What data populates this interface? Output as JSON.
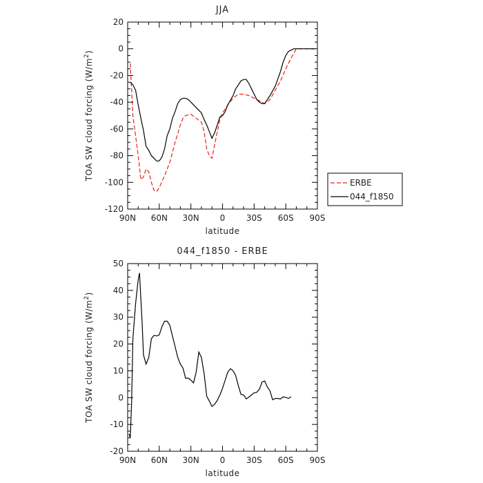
{
  "chart_data": [
    {
      "type": "line",
      "title": "JJA",
      "xlabel": "latitude",
      "ylabel": "TOA SW cloud forcing (W/m",
      "ylabel_sup": "2",
      "ylabel_end": ")",
      "xlim": [
        90,
        -90
      ],
      "ylim": [
        -120,
        20
      ],
      "x_ticks": [
        90,
        60,
        30,
        0,
        -30,
        -60,
        -90
      ],
      "x_tick_labels": [
        "90N",
        "60N",
        "30N",
        "0",
        "30S",
        "60S",
        "90S"
      ],
      "y_ticks": [
        -120,
        -100,
        -80,
        -60,
        -40,
        -20,
        0,
        20
      ],
      "y_tick_labels": [
        "-120",
        "-100",
        "-80",
        "-60",
        "-40",
        "-20",
        "0",
        "20"
      ],
      "legend": "right",
      "series": [
        {
          "name": "ERBE",
          "color": "#e8201c",
          "dash": "dashed",
          "points": [
            [
              87.5,
              -11
            ],
            [
              85,
              -50
            ],
            [
              80,
              -80
            ],
            [
              77.5,
              -98
            ],
            [
              75,
              -96
            ],
            [
              72.5,
              -90
            ],
            [
              70,
              -92
            ],
            [
              67.5,
              -100
            ],
            [
              65,
              -106
            ],
            [
              62.5,
              -107
            ],
            [
              60,
              -104
            ],
            [
              55,
              -95
            ],
            [
              50,
              -85
            ],
            [
              45,
              -70
            ],
            [
              40,
              -57
            ],
            [
              37.5,
              -52
            ],
            [
              35,
              -50
            ],
            [
              30,
              -49
            ],
            [
              25,
              -52
            ],
            [
              20,
              -55
            ],
            [
              17.5,
              -62
            ],
            [
              15,
              -75
            ],
            [
              12.5,
              -80
            ],
            [
              10,
              -82
            ],
            [
              7.5,
              -72
            ],
            [
              5,
              -62
            ],
            [
              2.5,
              -53
            ],
            [
              0,
              -48
            ],
            [
              -2.5,
              -45
            ],
            [
              -5,
              -42
            ],
            [
              -10,
              -37
            ],
            [
              -15,
              -34
            ],
            [
              -20,
              -34
            ],
            [
              -25,
              -35
            ],
            [
              -30,
              -37
            ],
            [
              -35,
              -39
            ],
            [
              -40,
              -41
            ],
            [
              -45,
              -38
            ],
            [
              -50,
              -31
            ],
            [
              -55,
              -24
            ],
            [
              -60,
              -15
            ],
            [
              -65,
              -7
            ],
            [
              -70,
              0
            ],
            [
              -75,
              0
            ],
            [
              -80,
              0
            ],
            [
              -85,
              0
            ],
            [
              -87.5,
              0
            ]
          ]
        },
        {
          "name": "044_f1850",
          "color": "#000000",
          "dash": "solid",
          "points": [
            [
              87.5,
              -25
            ],
            [
              85,
              -27
            ],
            [
              82.5,
              -31
            ],
            [
              80,
              -42
            ],
            [
              77.5,
              -52
            ],
            [
              75,
              -61
            ],
            [
              72.5,
              -73
            ],
            [
              70,
              -76
            ],
            [
              67.5,
              -80
            ],
            [
              65,
              -82
            ],
            [
              62.5,
              -84
            ],
            [
              60,
              -84
            ],
            [
              57.5,
              -81
            ],
            [
              55,
              -75
            ],
            [
              52.5,
              -65
            ],
            [
              50,
              -60
            ],
            [
              47.5,
              -52
            ],
            [
              45,
              -47
            ],
            [
              42.5,
              -41
            ],
            [
              40,
              -38
            ],
            [
              37.5,
              -37
            ],
            [
              35,
              -37
            ],
            [
              32.5,
              -38
            ],
            [
              30,
              -40
            ],
            [
              25,
              -44
            ],
            [
              20,
              -48
            ],
            [
              17.5,
              -53
            ],
            [
              15,
              -57
            ],
            [
              12.5,
              -62
            ],
            [
              10,
              -67
            ],
            [
              7.5,
              -63
            ],
            [
              5,
              -57
            ],
            [
              2.5,
              -51
            ],
            [
              0,
              -50
            ],
            [
              -2.5,
              -47
            ],
            [
              -5,
              -42
            ],
            [
              -10,
              -35
            ],
            [
              -12.5,
              -30
            ],
            [
              -15,
              -27
            ],
            [
              -17.5,
              -24
            ],
            [
              -20,
              -23
            ],
            [
              -22.5,
              -23
            ],
            [
              -25,
              -26
            ],
            [
              -27.5,
              -30
            ],
            [
              -30,
              -34
            ],
            [
              -32.5,
              -38
            ],
            [
              -35,
              -40
            ],
            [
              -37.5,
              -41
            ],
            [
              -40,
              -41
            ],
            [
              -42.5,
              -38
            ],
            [
              -45,
              -35
            ],
            [
              -50,
              -28
            ],
            [
              -55,
              -17
            ],
            [
              -57.5,
              -10
            ],
            [
              -60,
              -5
            ],
            [
              -62.5,
              -2
            ],
            [
              -65,
              -1
            ],
            [
              -67.5,
              0
            ],
            [
              -70,
              0
            ],
            [
              -75,
              0
            ],
            [
              -80,
              0
            ],
            [
              -85,
              0
            ],
            [
              -87.5,
              0
            ]
          ]
        }
      ]
    },
    {
      "type": "line",
      "title": "044_f1850 - ERBE",
      "xlabel": "latitude",
      "ylabel": "TOA SW cloud forcing (W/m",
      "ylabel_sup": "2",
      "ylabel_end": ")",
      "xlim": [
        90,
        -90
      ],
      "ylim": [
        -20,
        50
      ],
      "x_ticks": [
        90,
        60,
        30,
        0,
        -30,
        -60,
        -90
      ],
      "x_tick_labels": [
        "90N",
        "60N",
        "30N",
        "0",
        "30S",
        "60S",
        "90S"
      ],
      "y_ticks": [
        -20,
        -10,
        0,
        10,
        20,
        30,
        40,
        50
      ],
      "y_tick_labels": [
        "-20",
        "-10",
        "0",
        "10",
        "20",
        "30",
        "40",
        "50"
      ],
      "series": [
        {
          "color": "#000000",
          "dash": "solid",
          "points": [
            [
              88.75,
              -13.5
            ],
            [
              87.5,
              -15
            ],
            [
              86.25,
              -2
            ],
            [
              85,
              22
            ],
            [
              82.5,
              35
            ],
            [
              80,
              44
            ],
            [
              78.75,
              46.5
            ],
            [
              77.5,
              37
            ],
            [
              76.25,
              28
            ],
            [
              75,
              16
            ],
            [
              72.5,
              12.5
            ],
            [
              70,
              15
            ],
            [
              67.5,
              22
            ],
            [
              65,
              23.2
            ],
            [
              62.5,
              23
            ],
            [
              60,
              23.4
            ],
            [
              57.5,
              26.5
            ],
            [
              55,
              28.5
            ],
            [
              52.5,
              28.5
            ],
            [
              50,
              27
            ],
            [
              47.5,
              23
            ],
            [
              45,
              19
            ],
            [
              42.5,
              15
            ],
            [
              40,
              12.5
            ],
            [
              37.5,
              11
            ],
            [
              35,
              7.2
            ],
            [
              32.5,
              7.3
            ],
            [
              30,
              6.5
            ],
            [
              27.5,
              5.5
            ],
            [
              25,
              9.5
            ],
            [
              22.5,
              17
            ],
            [
              20,
              15
            ],
            [
              17.5,
              9
            ],
            [
              15,
              0.5
            ],
            [
              12.5,
              -1.3
            ],
            [
              10,
              -3.3
            ],
            [
              7.5,
              -2.5
            ],
            [
              5,
              -1
            ],
            [
              2.5,
              1
            ],
            [
              0,
              3.5
            ],
            [
              -2.5,
              6.5
            ],
            [
              -5,
              9.5
            ],
            [
              -7.5,
              10.8
            ],
            [
              -10,
              10
            ],
            [
              -12.5,
              8.2
            ],
            [
              -15,
              4.5
            ],
            [
              -17.5,
              1.2
            ],
            [
              -20,
              1
            ],
            [
              -22.5,
              -0.5
            ],
            [
              -25,
              0.2
            ],
            [
              -27.5,
              1
            ],
            [
              -30,
              1.8
            ],
            [
              -32.5,
              2
            ],
            [
              -35,
              3.2
            ],
            [
              -37.5,
              5.8
            ],
            [
              -40,
              6.2
            ],
            [
              -42.5,
              4
            ],
            [
              -45,
              2.5
            ],
            [
              -47.5,
              -0.8
            ],
            [
              -50,
              -0.3
            ],
            [
              -52.5,
              -0.3
            ],
            [
              -55,
              -0.5
            ],
            [
              -57.5,
              0.3
            ],
            [
              -60,
              0.1
            ],
            [
              -62.5,
              -0.3
            ],
            [
              -65,
              0.3
            ]
          ]
        }
      ]
    }
  ]
}
